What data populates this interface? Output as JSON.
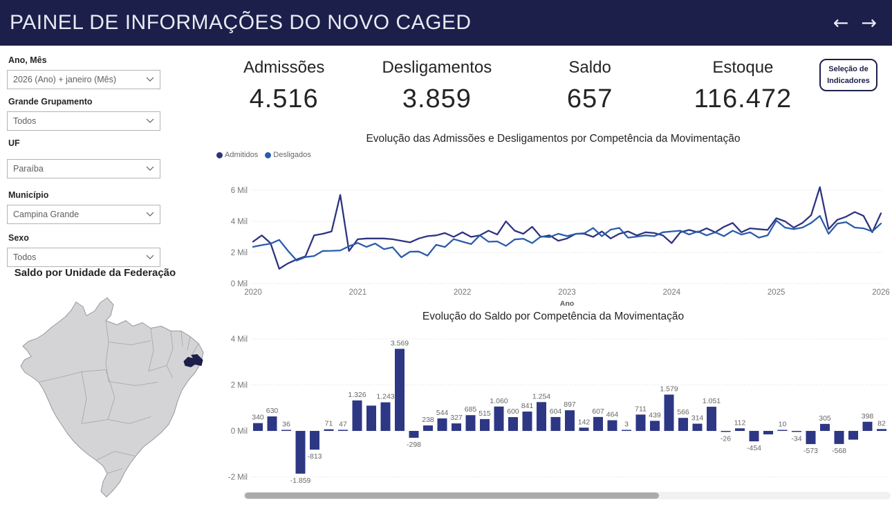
{
  "header": {
    "title": "PAINEL DE INFORMAÇÕES DO NOVO CAGED",
    "nav_back_icon": "←",
    "nav_forward_icon": "→"
  },
  "filters": [
    {
      "label": "Ano, Mês",
      "value": "2026 (Ano) + janeiro (Mês)"
    },
    {
      "label": "Grande Grupamento",
      "value": "Todos"
    },
    {
      "label": "UF",
      "value": "Paraíba"
    },
    {
      "label": "Município",
      "value": "Campina Grande"
    },
    {
      "label": "Sexo",
      "value": "Todos"
    }
  ],
  "map": {
    "title": "Saldo por Unidade da Federação",
    "highlighted_state": "Paraíba",
    "fill_color": "#d4d4d6",
    "border_color": "#97979e",
    "highlight_color": "#1b1f4a"
  },
  "kpis": [
    {
      "label": "Admissões",
      "value": "4.516"
    },
    {
      "label": "Desligamentos",
      "value": "3.859"
    },
    {
      "label": "Saldo",
      "value": "657"
    },
    {
      "label": "Estoque",
      "value": "116.472"
    }
  ],
  "selector_button": {
    "line1": "Seleção de",
    "line2": "Indicadores"
  },
  "chart_data": [
    {
      "type": "line",
      "title": "Evolução das Admissões e Desligamentos por Competência da Movimentação",
      "xlabel": "Ano",
      "x_ticks": [
        "2020",
        "2021",
        "2022",
        "2023",
        "2024",
        "2025",
        "2026"
      ],
      "y_ticks": [
        "0 Mil",
        "2 Mil",
        "4 Mil",
        "6 Mil"
      ],
      "ylim": [
        0,
        6000
      ],
      "x_start": "2020-01",
      "x_end": "2026-01",
      "frequency": "monthly",
      "values_estimated_from_plot": true,
      "grid": "dotted",
      "legend_position": "top-left",
      "series": [
        {
          "name": "Admitidos",
          "color": "#2d3380",
          "values": [
            2700,
            3100,
            2600,
            950,
            1300,
            1550,
            1750,
            3100,
            3200,
            3350,
            5700,
            2100,
            2850,
            2900,
            2900,
            2900,
            2850,
            2750,
            2650,
            2900,
            3050,
            3100,
            3250,
            3000,
            3300,
            3000,
            3100,
            3400,
            3150,
            4000,
            3400,
            3200,
            3650,
            3000,
            3100,
            2750,
            2900,
            3200,
            3200,
            3000,
            3350,
            2900,
            3200,
            3350,
            3100,
            3300,
            3250,
            3100,
            2600,
            3300,
            3450,
            3300,
            3550,
            3300,
            3650,
            3900,
            3300,
            3550,
            3500,
            3450,
            4200,
            4000,
            3600,
            3900,
            4400,
            6200,
            3500,
            4100,
            4300,
            4600,
            4350,
            3300,
            4516
          ]
        },
        {
          "name": "Desligados",
          "color": "#2a5caa",
          "values": [
            2360,
            2470,
            2564,
            2809,
            2113,
            1479,
            1703,
            1774,
            2100,
            2107,
            2131,
            2398,
            2612,
            2356,
            2573,
            2215,
            2335,
            1690,
            2050,
            2059,
            1796,
            2496,
            2353,
            2858,
            2693,
            2536,
            3097,
            2689,
            2711,
            2421,
            2834,
            2886,
            2599,
            3026,
            2988,
            3204,
            3050,
            3190,
            3234,
            3573,
            3045,
            3468,
            3580,
            2952,
            3018,
            3100,
            3050,
            3300,
            3350,
            3400,
            3150,
            3350,
            3100,
            3300,
            3050,
            3400,
            3150,
            3300,
            2950,
            3100,
            4050,
            3600,
            3500,
            3600,
            3900,
            4350,
            3200,
            3850,
            3950,
            3600,
            3550,
            3350,
            3859
          ]
        }
      ]
    },
    {
      "type": "bar",
      "title": "Evolução do Saldo por Competência da Movimentação",
      "y_ticks": [
        "-2 Mil",
        "0 Mil",
        "2 Mil",
        "4 Mil"
      ],
      "ylim": [
        -2000,
        4000
      ],
      "color": "#2e3784",
      "grid": "dotted",
      "x_axis_labels_visible": false,
      "scrollable": true,
      "values": [
        340,
        630,
        36,
        -1859,
        -813,
        71,
        47,
        1326,
        1100,
        1243,
        3569,
        -298,
        238,
        544,
        327,
        685,
        515,
        1060,
        600,
        841,
        1254,
        604,
        897,
        142,
        607,
        464,
        3,
        711,
        439,
        1579,
        566,
        314,
        1051,
        -26,
        112,
        -454,
        -150,
        10,
        -34,
        -573,
        305,
        -568,
        -380,
        398,
        82
      ],
      "labels": [
        "340",
        "630",
        "36",
        "-1.859",
        "-813",
        "71",
        "47",
        "1.326",
        "",
        "1.243",
        "3.569",
        "-298",
        "238",
        "544",
        "327",
        "685",
        "515",
        "1.060",
        "600",
        "841",
        "1.254",
        "604",
        "897",
        "142",
        "607",
        "464",
        "3",
        "711",
        "439",
        "1.579",
        "566",
        "314",
        "1.051",
        "-26",
        "112",
        "-454",
        "",
        "10",
        "-34",
        "-573",
        "305",
        "-568",
        "",
        "398",
        "82"
      ]
    }
  ]
}
